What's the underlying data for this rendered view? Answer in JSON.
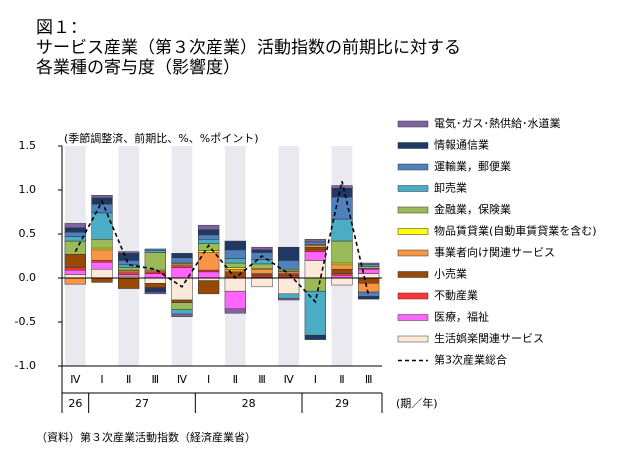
{
  "chart_data": {
    "type": "stacked_bar",
    "title_lines": [
      "図１：",
      "サービス産業（第３次産業）活動指数の前期比に対する",
      "各業種の寄与度（影響度）"
    ],
    "y_axis_label": "(季節調整済、前期比、%、%ポイント)",
    "x_unit_label": "(期／年)",
    "source": "（資料）第３次産業活動指数（経済産業省）",
    "categories": [
      "Ⅳ",
      "Ⅰ",
      "Ⅱ",
      "Ⅲ",
      "Ⅳ",
      "Ⅰ",
      "Ⅱ",
      "Ⅲ",
      "Ⅳ",
      "Ⅰ",
      "Ⅱ",
      "Ⅲ"
    ],
    "years": [
      "26",
      "27",
      "27",
      "27",
      "27",
      "28",
      "28",
      "28",
      "28",
      "29",
      "29",
      "29"
    ],
    "ylim": [
      -1.0,
      1.5
    ],
    "yticks": [
      {
        "value": -1.0,
        "label": "-1.0"
      },
      -0.5,
      {
        "value": 0,
        "label": "0.0"
      },
      0.5,
      {
        "value": 1.0,
        "label": "1.0"
      },
      {
        "value": 1.5,
        "label": "1.5"
      }
    ],
    "grid": false,
    "series": [
      {
        "name": "電気･ガス･熱供給･水道業",
        "color": "#8064a2",
        "values": [
          0.05,
          0.03,
          0.02,
          -0.02,
          -0.03,
          0.05,
          -0.05,
          0.03,
          -0.02,
          0.03,
          0.03,
          0.02
        ]
      },
      {
        "name": "情報通信業",
        "color": "#1f3864",
        "values": [
          0.05,
          0.07,
          0.08,
          -0.05,
          0.05,
          0.06,
          0.1,
          0.03,
          0.15,
          -0.05,
          0.1,
          -0.03
        ]
      },
      {
        "name": "運輸業，郵便業",
        "color": "#4f81bd",
        "values": [
          0.05,
          0.1,
          0.05,
          0.02,
          0.06,
          0.05,
          0.1,
          0.08,
          0.1,
          0.03,
          0.25,
          -0.05
        ]
      },
      {
        "name": "卸売業",
        "color": "#4bacc6",
        "values": [
          0.05,
          0.3,
          0.03,
          0.02,
          -0.05,
          0.05,
          0.05,
          0.05,
          -0.05,
          -0.5,
          0.25,
          0.02
        ]
      },
      {
        "name": "金融業，保険業",
        "color": "#9bbb59",
        "values": [
          0.15,
          0.1,
          0.03,
          0.2,
          -0.08,
          0.08,
          0.05,
          0.05,
          0.02,
          -0.15,
          0.25,
          0.02
        ]
      },
      {
        "name": "物品賃貸業(自動車賃貸業を含む)",
        "color": "#ffff00",
        "values": [
          0,
          0.02,
          0.01,
          0,
          0.01,
          0.02,
          0.02,
          0.01,
          0.01,
          0.01,
          0.02,
          0
        ]
      },
      {
        "name": "事業者向け関連サービス",
        "color": "#f79646",
        "values": [
          -0.07,
          0.12,
          0.02,
          0.02,
          0.02,
          0.2,
          0.03,
          0.05,
          0.02,
          0.02,
          0.05,
          -0.1
        ]
      },
      {
        "name": "小売業",
        "color": "#984807",
        "values": [
          0.15,
          -0.05,
          -0.12,
          -0.05,
          -0.03,
          -0.15,
          0.05,
          0.02,
          0.02,
          0.03,
          0.05,
          -0.06
        ]
      },
      {
        "name": "不動産業",
        "color": "#ff3333",
        "values": [
          0.03,
          0.02,
          0.02,
          0.02,
          0.02,
          0.02,
          0.02,
          0.02,
          0.02,
          0.02,
          0.02,
          0.01
        ]
      },
      {
        "name": "医療，福祉",
        "color": "#ff66ff",
        "values": [
          0.05,
          0.08,
          0.02,
          0.05,
          0.12,
          0.07,
          -0.2,
          0.01,
          0.01,
          0.1,
          0.03,
          0.05
        ]
      },
      {
        "name": "生活娯楽関連サービス",
        "color": "#fde9d9",
        "values": [
          0.04,
          0.1,
          0.02,
          -0.06,
          -0.25,
          -0.03,
          -0.15,
          -0.1,
          -0.18,
          0.2,
          -0.08,
          0.05
        ]
      }
    ],
    "line_series": {
      "name": "第3次産業総合",
      "color": "#000000",
      "values": [
        0.3,
        0.87,
        0.15,
        0.1,
        -0.1,
        0.37,
        0.0,
        0.25,
        0.05,
        -0.27,
        1.1,
        -0.2
      ]
    }
  }
}
